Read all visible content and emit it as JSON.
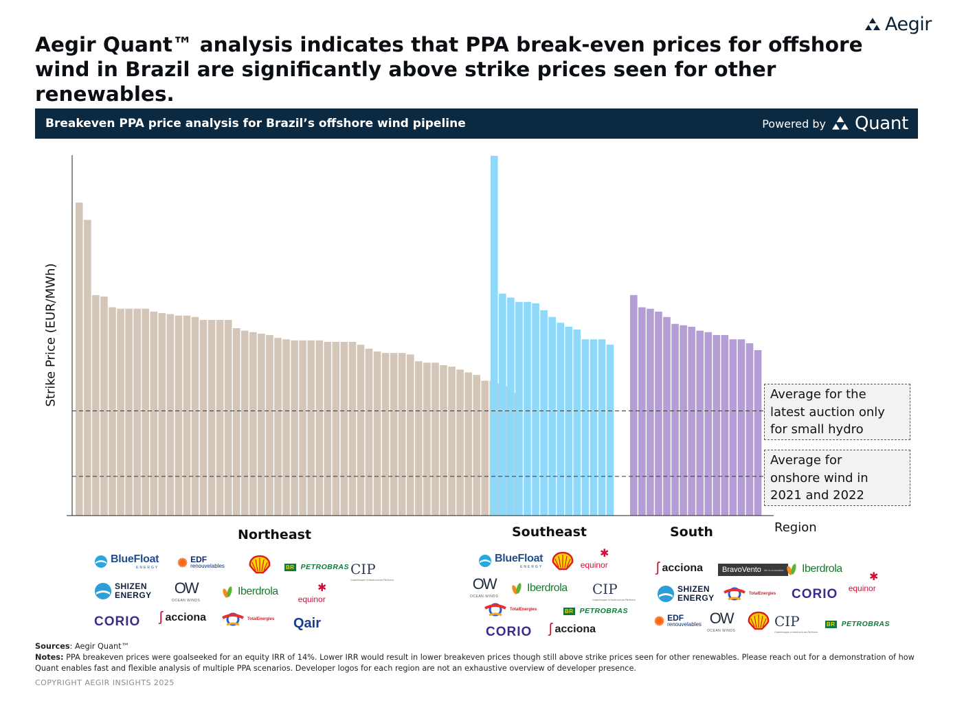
{
  "brand": {
    "name": "Aegir",
    "logo_icon": "triangle-cluster-icon",
    "navy": "#0b2a42"
  },
  "headline": "Aegir Quant™ analysis indicates that PPA break-even prices for offshore wind in Brazil are significantly above strike prices seen for other renewables.",
  "banner": {
    "title": "Breakeven PPA price analysis for Brazil’s offshore wind pipeline",
    "powered_by": "Powered by",
    "product": "Quant"
  },
  "chart_data": {
    "type": "bar",
    "title": "Breakeven PPA price analysis for Brazil’s offshore wind pipeline",
    "ylabel": "Strike Price (EUR/MWh)",
    "xlabel": "Region",
    "y_tick_labels": [],
    "ylim": [
      0,
      100
    ],
    "value_units": "relative (axis unlabelled)",
    "groups": [
      {
        "name": "Northeast",
        "color": "#d3c6b9",
        "values": [
          87.0,
          82.2,
          61.3,
          60.9,
          57.9,
          57.5,
          57.5,
          57.5,
          57.5,
          56.7,
          56.3,
          56.0,
          55.6,
          55.6,
          55.2,
          54.4,
          54.4,
          54.4,
          54.4,
          52.1,
          51.4,
          51.0,
          50.6,
          50.2,
          49.4,
          49.0,
          48.7,
          48.7,
          48.7,
          48.7,
          48.3,
          48.3,
          48.3,
          48.3,
          47.5,
          46.4,
          45.6,
          45.2,
          45.2,
          45.2,
          44.8,
          42.9,
          42.5,
          42.5,
          41.8,
          41.4,
          40.6,
          39.8,
          39.1,
          37.5,
          37.5,
          36.8,
          36.0,
          34.1
        ]
      },
      {
        "name": "Southeast",
        "color": "#8ed8fa",
        "values": [
          100.0,
          61.7,
          60.6,
          59.4,
          59.4,
          59.0,
          57.1,
          55.2,
          53.6,
          52.5,
          51.7,
          49.0,
          49.0,
          49.0,
          47.5
        ]
      },
      {
        "name": "South",
        "color": "#b59dd6",
        "values": [
          61.3,
          57.9,
          57.5,
          56.7,
          55.2,
          53.3,
          52.9,
          52.5,
          51.4,
          51.0,
          50.2,
          50.2,
          49.0,
          49.0,
          47.9,
          46.0
        ]
      }
    ],
    "reference_lines": [
      {
        "name": "small-hydro-average",
        "value": 29.1,
        "label": "Average for the latest auction only for small hydro"
      },
      {
        "name": "onshore-wind-average",
        "value": 10.9,
        "label": "Average for onshore wind in 2021 and 2022"
      }
    ]
  },
  "annotations": {
    "hydro": [
      "Average for the",
      "latest auction only",
      "for small hydro"
    ],
    "onshore": [
      "Average for",
      "onshore wind in",
      "2021 and 2022"
    ]
  },
  "regions": {
    "northeast": "Northeast",
    "southeast": "Southeast",
    "south": "South",
    "axis_label": "Region"
  },
  "logos": {
    "bluefloat": {
      "name": "BlueFloat",
      "sub": "ENERGY"
    },
    "edf": {
      "name": "EDF",
      "sub": "renouvelables"
    },
    "petrobras": {
      "mark": "BR",
      "name": "PETROBRAS"
    },
    "cip": {
      "name": "CIP",
      "sub": "Copenhagen Infrastructure Partners"
    },
    "shizen": {
      "line1": "SHIZEN",
      "line2": "ENERGY"
    },
    "ow": {
      "name": "OW",
      "sub": "OCEAN WINDS"
    },
    "iberdrola": {
      "name": "Iberdrola"
    },
    "equinor": {
      "name": "equinor"
    },
    "corio": {
      "name": "CORIO"
    },
    "acciona": {
      "name": "acciona"
    },
    "totalenergies": {
      "name": "TotalEnergies"
    },
    "qair": {
      "name": "Qair"
    },
    "bravovento": {
      "name": "BravoVento",
      "sub": "life is renewable"
    }
  },
  "sources": {
    "label": "Sources",
    "text": "Aegir Quant™"
  },
  "notes": {
    "label": "Notes:",
    "text": "PPA breakeven prices were goalseeked for an equity IRR of 14%. Lower IRR would result in lower breakeven prices though still above strike prices seen for other renewables. Please reach out for a demonstration of how Quant enables fast and flexible analysis of multiple PPA scenarios. Developer logos for each region are not an exhaustive overview of developer presence."
  },
  "copyright": "COPYRIGHT AEGIR INSIGHTS 2025"
}
